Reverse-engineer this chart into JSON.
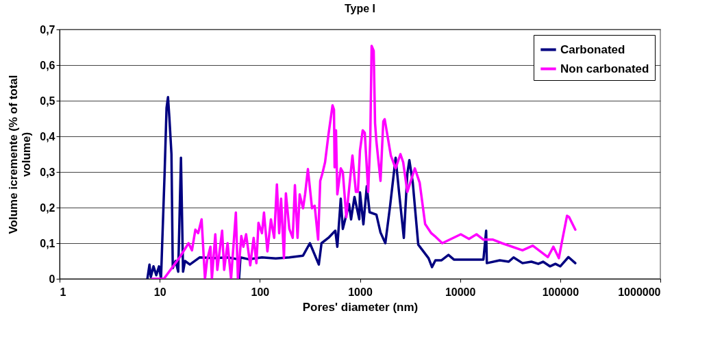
{
  "chart_data": {
    "type": "line",
    "title": "Type I",
    "xlabel": "Pores' diameter (nm)",
    "ylabel": "Volume icremente (% of total volume)",
    "log": "x",
    "grid": "y",
    "legend": "top right",
    "line_style": "solid",
    "marker": "none",
    "xlim": [
      1,
      1000000
    ],
    "xticks": [
      1,
      10,
      100,
      1000,
      10000,
      100000,
      1000000
    ],
    "ylim": [
      0,
      0.7
    ],
    "yticks": [
      {
        "value": 0,
        "label": "0"
      },
      {
        "value": 0.1,
        "label": "0,1"
      },
      {
        "value": 0.2,
        "label": "0,2"
      },
      {
        "value": 0.3,
        "label": "0,3"
      },
      {
        "value": 0.4,
        "label": "0,4"
      },
      {
        "value": 0.5,
        "label": "0,5"
      },
      {
        "value": 0.6,
        "label": "0,6"
      },
      {
        "value": 0.7,
        "label": "0,7"
      }
    ],
    "series": [
      {
        "name": "Carbonated",
        "color": "#000080",
        "x": [
          7.53,
          7.9,
          8.15,
          8.67,
          9.24,
          9.84,
          10.3,
          11.2,
          11.7,
          12.1,
          12.5,
          13.1,
          13.5,
          14.4,
          15.3,
          16.3,
          17.1,
          17.9,
          20,
          25,
          35,
          48,
          60,
          62,
          64,
          77,
          105,
          144,
          197,
          270,
          316,
          388,
          413,
          484,
          567,
          594,
          643,
          674,
          777,
          815,
          881,
          984,
          1000,
          1082,
          1170,
          1247,
          1459,
          1603,
          1792,
          2000,
          2270,
          2456,
          2742,
          2970,
          3113,
          3368,
          3820,
          4840,
          5240,
          5670,
          6530,
          7650,
          8670,
          17100,
          18200,
          18500,
          24900,
          30600,
          34200,
          42000,
          51500,
          60400,
          67400,
          78900,
          89500,
          100000,
          120800,
          141500
        ],
        "values": [
          0,
          0.04,
          0.005,
          0.035,
          0.01,
          0.035,
          0,
          0.3,
          0.48,
          0.51,
          0.45,
          0.35,
          0.03,
          0.05,
          0.02,
          0.34,
          0.02,
          0.05,
          0.04,
          0.06,
          0.058,
          0.06,
          0.055,
          0,
          0.06,
          0.055,
          0.06,
          0.057,
          0.06,
          0.065,
          0.1,
          0.04,
          0.1,
          0.115,
          0.135,
          0.09,
          0.225,
          0.14,
          0.21,
          0.167,
          0.23,
          0.167,
          0.243,
          0.153,
          0.26,
          0.187,
          0.18,
          0.13,
          0.1,
          0.205,
          0.34,
          0.243,
          0.115,
          0.294,
          0.333,
          0.27,
          0.096,
          0.058,
          0.033,
          0.052,
          0.052,
          0.067,
          0.054,
          0.054,
          0.135,
          0.044,
          0.052,
          0.048,
          0.06,
          0.044,
          0.048,
          0.042,
          0.048,
          0.035,
          0.042,
          0.035,
          0.061,
          0.044
        ]
      },
      {
        "name": "Non carbonated",
        "color": "#ff00ff",
        "x": [
          8.41,
          11,
          15.8,
          19.4,
          21,
          22.7,
          24.2,
          26.2,
          28.3,
          29.7,
          32.1,
          33.2,
          35.9,
          37.6,
          42,
          44,
          47.6,
          51.6,
          57.6,
          60.4,
          65.3,
          68.5,
          72.9,
          80.2,
          86.7,
          92.4,
          96.9,
          105,
          110,
          119,
          129,
          139,
          148,
          156,
          163,
          174,
          182,
          197,
          213,
          224,
          238,
          250,
          270,
          283,
          302,
          332,
          353,
          382,
          401,
          420,
          448,
          484,
          532,
          550,
          558,
          576,
          594,
          643,
          674,
          730,
          841,
          910,
          954,
          1000,
          1065,
          1117,
          1208,
          1267,
          1307,
          1371,
          1415,
          1460,
          1604,
          1710,
          1765,
          2034,
          2270,
          2536,
          2703,
          2970,
          3532,
          3945,
          4475,
          5155,
          5580,
          6637,
          10160,
          12270,
          14590,
          17100,
          21320,
          26180,
          42000,
          53200,
          75300,
          85500,
          96900,
          105000,
          117000,
          122700,
          141500
        ],
        "values": [
          0,
          0,
          0.06,
          0.1,
          0.08,
          0.138,
          0.128,
          0.167,
          0,
          0.052,
          0.09,
          0,
          0.125,
          0.025,
          0.135,
          0.025,
          0.1,
          0,
          0.186,
          0,
          0.12,
          0.09,
          0.125,
          0.038,
          0.115,
          0.044,
          0.157,
          0.128,
          0.186,
          0.077,
          0.167,
          0.115,
          0.265,
          0.128,
          0.225,
          0.058,
          0.24,
          0.14,
          0.115,
          0.263,
          0.115,
          0.237,
          0.198,
          0.237,
          0.308,
          0.198,
          0.205,
          0.11,
          0.275,
          0.294,
          0.327,
          0.404,
          0.487,
          0.475,
          0.313,
          0.417,
          0.237,
          0.31,
          0.3,
          0.173,
          0.346,
          0.244,
          0.244,
          0.36,
          0.417,
          0.41,
          0.244,
          0.39,
          0.654,
          0.64,
          0.437,
          0.385,
          0.275,
          0.442,
          0.448,
          0.346,
          0.31,
          0.35,
          0.327,
          0.244,
          0.31,
          0.27,
          0.154,
          0.128,
          0.12,
          0.1,
          0.125,
          0.112,
          0.125,
          0.11,
          0.11,
          0.1,
          0.08,
          0.093,
          0.061,
          0.09,
          0.058,
          0.11,
          0.177,
          0.173,
          0.138
        ]
      }
    ]
  }
}
